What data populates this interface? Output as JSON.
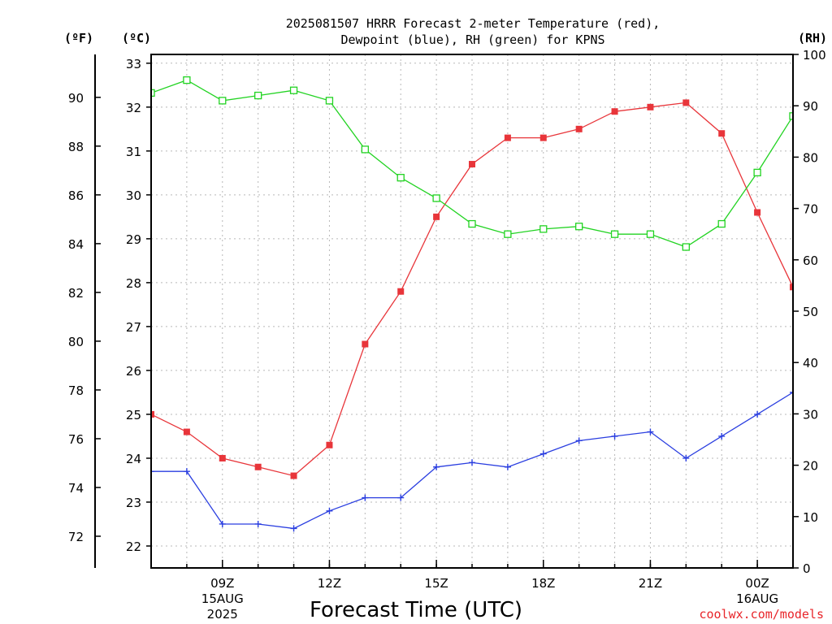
{
  "title": {
    "line1": "2025081507 HRRR Forecast 2-meter Temperature (red),",
    "line2": "Dewpoint (blue), RH (green) for KPNS"
  },
  "units": {
    "f": "(ºF)",
    "c": "(ºC)",
    "rh": "(RH)"
  },
  "xlabel": "Forecast Time (UTC)",
  "credit": "coolwx.com/models",
  "colors": {
    "temperature": "#e8353a",
    "dewpoint": "#2a3ee0",
    "rh": "#22d322"
  },
  "chart_data": {
    "type": "line",
    "x": [
      7,
      8,
      9,
      10,
      11,
      12,
      13,
      14,
      15,
      16,
      17,
      18,
      19,
      20,
      21,
      22,
      23,
      24,
      25
    ],
    "x_unit": "hour UTC (15 AUG 2025)",
    "xlim": [
      7,
      25
    ],
    "x_ticks": [
      {
        "x": 9,
        "lines": [
          "09Z",
          "15AUG",
          "2025"
        ]
      },
      {
        "x": 12,
        "lines": [
          "12Z"
        ]
      },
      {
        "x": 15,
        "lines": [
          "15Z"
        ]
      },
      {
        "x": 18,
        "lines": [
          "18Z"
        ]
      },
      {
        "x": 21,
        "lines": [
          "21Z"
        ]
      },
      {
        "x": 24,
        "lines": [
          "00Z",
          "16AUG"
        ]
      }
    ],
    "ylim_c": [
      21.5,
      33.2
    ],
    "yticks_c": [
      22,
      23,
      24,
      25,
      26,
      27,
      28,
      29,
      30,
      31,
      32,
      33
    ],
    "yticks_f": [
      72,
      74,
      76,
      78,
      80,
      82,
      84,
      86,
      88,
      90
    ],
    "ylim_rh": [
      0,
      100
    ],
    "yticks_rh": [
      0,
      10,
      20,
      30,
      40,
      50,
      60,
      70,
      80,
      90,
      100
    ],
    "grid": true,
    "series": [
      {
        "key": "temperature",
        "axis": "c",
        "marker": "square-filled",
        "values": [
          25.0,
          24.6,
          24.0,
          23.8,
          23.6,
          24.3,
          26.6,
          27.8,
          29.5,
          30.7,
          31.3,
          31.3,
          31.5,
          31.9,
          32.0,
          32.1,
          31.4,
          29.6,
          27.9
        ]
      },
      {
        "key": "dewpoint",
        "axis": "c",
        "marker": "plus",
        "values": [
          23.7,
          23.7,
          22.5,
          22.5,
          22.4,
          22.8,
          23.1,
          23.1,
          23.8,
          23.9,
          23.8,
          24.1,
          24.4,
          24.5,
          24.6,
          24.0,
          24.5,
          25.0,
          25.5
        ]
      },
      {
        "key": "rh",
        "axis": "rh",
        "marker": "square-open",
        "values": [
          92.5,
          95,
          91,
          92,
          93,
          91,
          81.5,
          76,
          72,
          67,
          65,
          66,
          66.5,
          65,
          65,
          62.5,
          67,
          77,
          88
        ]
      }
    ]
  }
}
